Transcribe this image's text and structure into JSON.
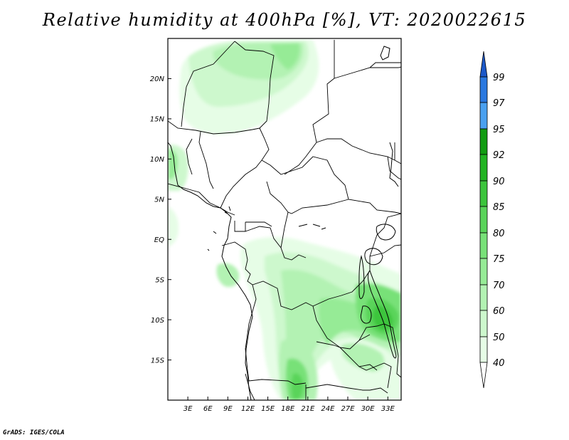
{
  "title": "Relative humidity at 400hPa [%], VT: 2020022615",
  "footer": "GrADS: IGES/COLA",
  "map": {
    "lon_range": [
      0,
      35
    ],
    "lat_range": [
      -20,
      25
    ],
    "x_ticks": [
      "3E",
      "6E",
      "9E",
      "12E",
      "15E",
      "18E",
      "21E",
      "24E",
      "27E",
      "30E",
      "33E"
    ],
    "y_ticks": [
      "20N",
      "15N",
      "10N",
      "5N",
      "EQ",
      "5S",
      "10S",
      "15S"
    ],
    "field": "relative humidity at 400hPa",
    "units": "%"
  },
  "colorbar": {
    "levels": [
      "40",
      "50",
      "60",
      "70",
      "75",
      "80",
      "85",
      "90",
      "92",
      "95",
      "97",
      "99"
    ],
    "colors": [
      "#ffffff",
      "#e6fde6",
      "#cdf8cd",
      "#b3f2b3",
      "#96eb96",
      "#78e178",
      "#5ad45a",
      "#3cc53c",
      "#22b422",
      "#119c11",
      "#4aa0f0",
      "#2a78e0",
      "#1c58c8"
    ]
  }
}
